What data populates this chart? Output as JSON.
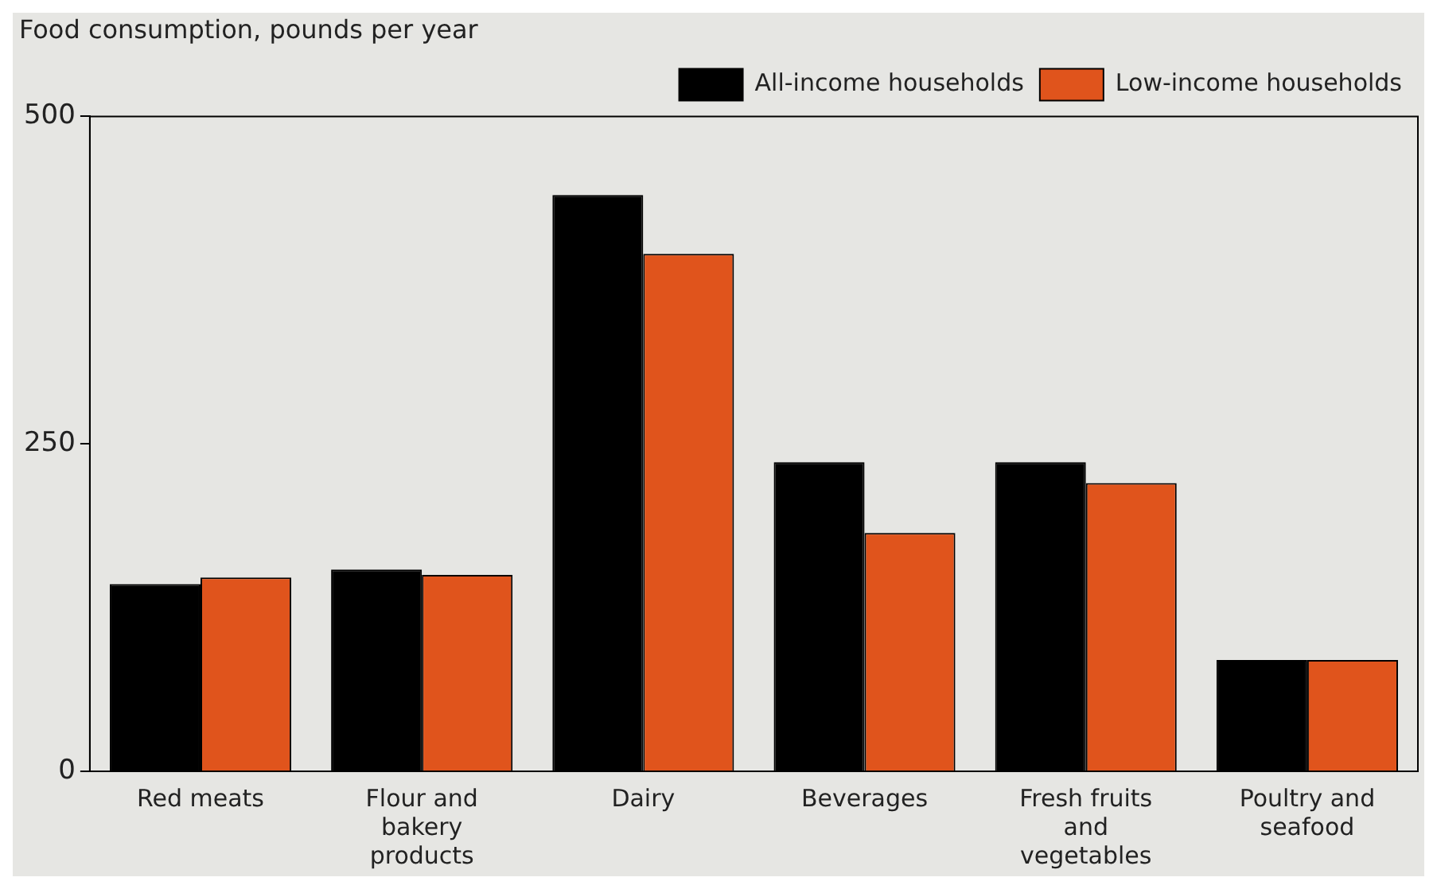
{
  "chart_data": {
    "type": "bar",
    "title": "Food consumption, pounds per year",
    "categories": [
      "Red meats",
      "Flour and bakery products",
      "Dairy",
      "Beverages",
      "Fresh fruits and vegetables",
      "Poultry and seafood"
    ],
    "series": [
      {
        "name": "All-income households",
        "color": "#000000",
        "values": [
          143,
          154,
          440,
          236,
          236,
          85
        ]
      },
      {
        "name": "Low-income households",
        "color": "#e0541c",
        "values": [
          148,
          150,
          395,
          182,
          220,
          85
        ]
      }
    ],
    "ylim": [
      0,
      500
    ],
    "yticks": [
      0,
      250,
      500
    ],
    "grid": false,
    "legend": "top right"
  }
}
